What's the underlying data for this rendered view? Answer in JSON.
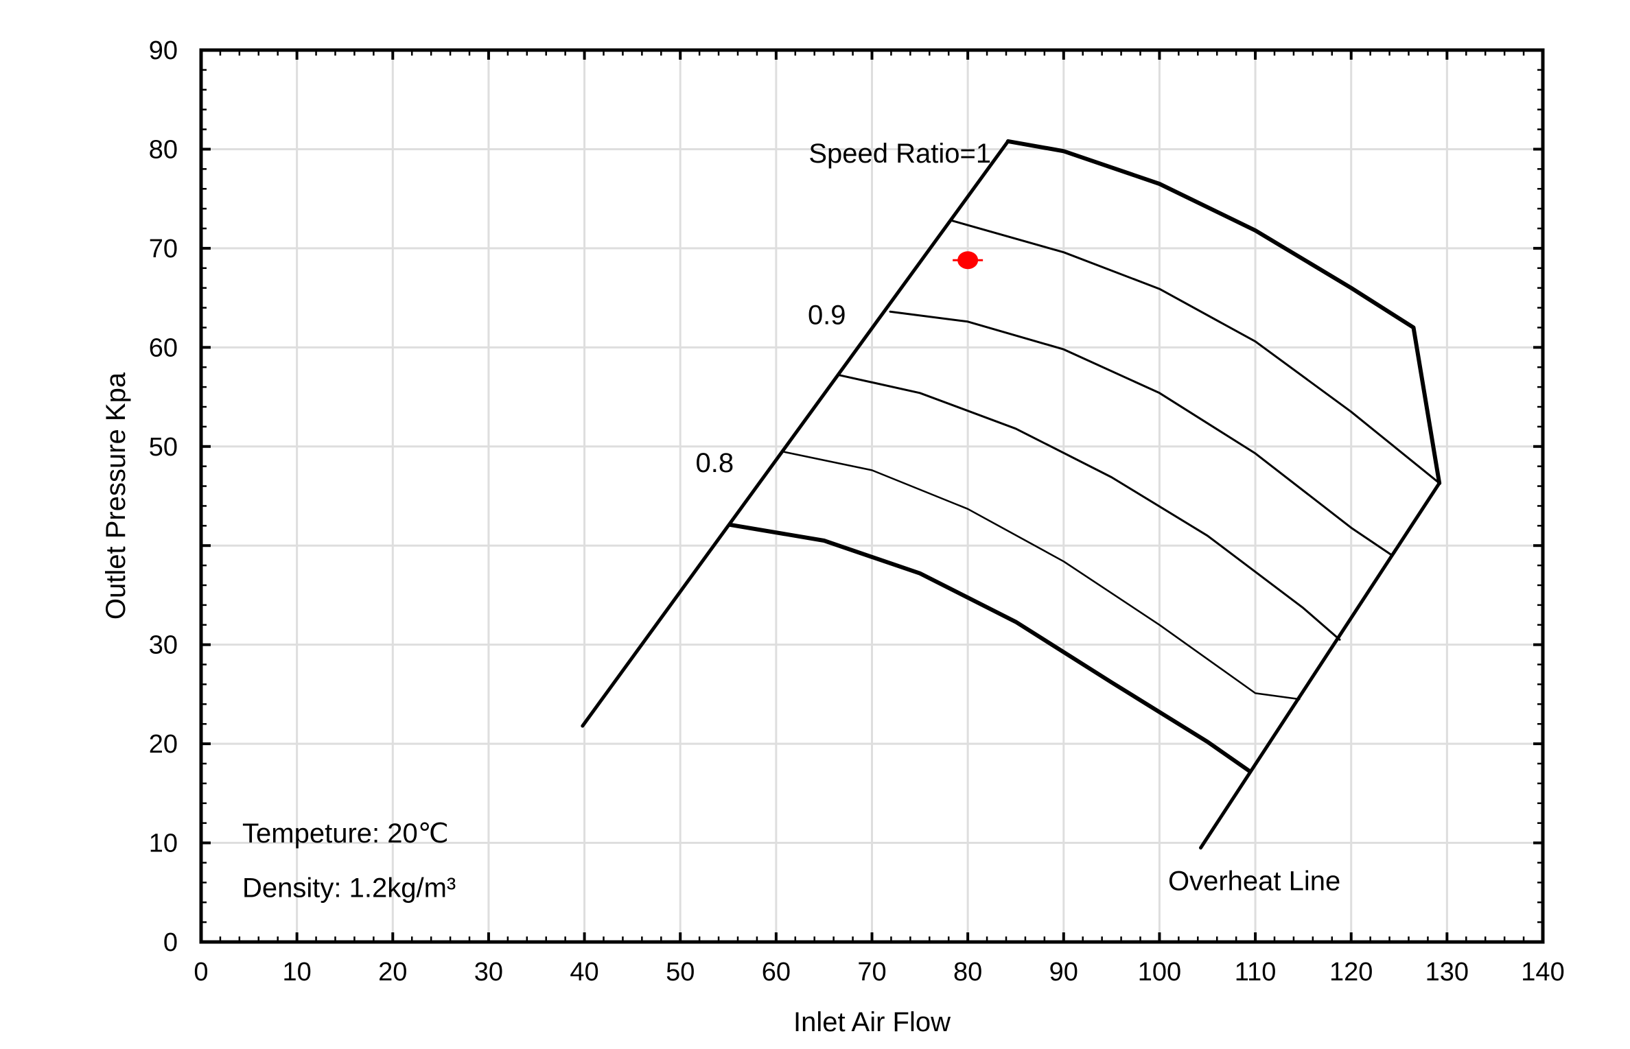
{
  "chart_data": {
    "type": "line",
    "title": "",
    "xlabel": "Inlet Air Flow",
    "ylabel": "Outlet Pressure Kpa",
    "xlim": [
      0,
      140
    ],
    "ylim": [
      0,
      90
    ],
    "xticks": [
      0,
      10,
      20,
      30,
      40,
      50,
      60,
      70,
      80,
      90,
      100,
      110,
      120,
      130,
      140
    ],
    "yticks": [
      0,
      10,
      20,
      30,
      40,
      50,
      60,
      70,
      80,
      90
    ],
    "ytick_labels": [
      "0",
      "10",
      "20",
      "30",
      "",
      "50",
      "60",
      "70",
      "80",
      "90"
    ],
    "grid": true,
    "series": [
      {
        "name": "Surge boundary",
        "stroke_width": 5,
        "x": [
          39.8,
          84.2
        ],
        "y": [
          21.8,
          80.8
        ]
      },
      {
        "name": "Overheat Line",
        "stroke_width": 5,
        "x": [
          104.3,
          129.2
        ],
        "y": [
          9.5,
          46.3
        ]
      },
      {
        "name": "Speed Ratio=1",
        "stroke_width": 6,
        "x": [
          84.2,
          90,
          100,
          110,
          120,
          126.5,
          129.2
        ],
        "y": [
          80.8,
          79.8,
          76.5,
          71.8,
          66.0,
          62.0,
          46.3
        ]
      },
      {
        "name": "speed-0.95",
        "stroke_width": 3,
        "x": [
          78.3,
          90,
          100,
          110,
          120,
          129.2
        ],
        "y": [
          72.8,
          69.6,
          65.9,
          60.6,
          53.5,
          46.3
        ]
      },
      {
        "name": "0.9",
        "stroke_width": 3,
        "x": [
          71.9,
          80,
          90,
          100,
          110,
          120,
          124.3
        ],
        "y": [
          63.6,
          62.6,
          59.8,
          55.4,
          49.3,
          41.8,
          39.0
        ]
      },
      {
        "name": "speed-0.85",
        "stroke_width": 3,
        "x": [
          66.6,
          75,
          85,
          95,
          105,
          115,
          118.8
        ],
        "y": [
          57.2,
          55.4,
          51.8,
          46.9,
          41.0,
          33.7,
          30.5
        ]
      },
      {
        "name": "0.8",
        "stroke_width": 2.5,
        "x": [
          60.6,
          70,
          80,
          90,
          100,
          110,
          114.6
        ],
        "y": [
          49.5,
          47.6,
          43.7,
          38.4,
          32.0,
          25.1,
          24.5
        ]
      },
      {
        "name": "speed-0.75",
        "stroke_width": 6,
        "x": [
          55.2,
          65,
          75,
          85,
          95,
          105,
          109.3
        ],
        "y": [
          42.1,
          40.5,
          37.2,
          32.3,
          26.2,
          20.2,
          17.3
        ]
      }
    ],
    "points": [
      {
        "name": "operating-point",
        "x": 80.0,
        "y": 68.8,
        "color": "#ff0000"
      }
    ],
    "annotations": [
      {
        "name": "speed-ratio-1-label",
        "text": "Speed Ratio=1",
        "x": 63.4,
        "y": 79.6
      },
      {
        "name": "speed-0.9-label",
        "text": "0.9",
        "x": 63.3,
        "y": 63.3
      },
      {
        "name": "speed-0.8-label",
        "text": "0.8",
        "x": 51.6,
        "y": 48.4
      },
      {
        "name": "overheat-line-label",
        "text": "Overheat Line",
        "x": 100.9,
        "y": 6.2
      },
      {
        "name": "temperature-note",
        "text": "Tempeture: 20℃",
        "x": 4.3,
        "y": 11.0
      },
      {
        "name": "density-note",
        "text": "Density: 1.2kg/m³",
        "x": 4.3,
        "y": 5.5
      }
    ]
  }
}
